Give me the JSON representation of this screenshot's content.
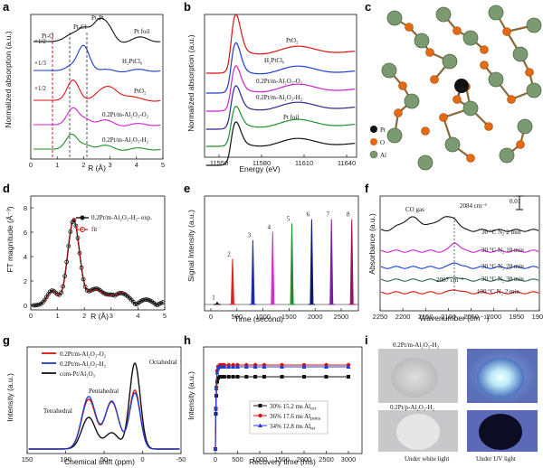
{
  "panels": {
    "a": {
      "label": "a",
      "ylabel": "Normalized absorption (a.u.)",
      "xlabel": "R (Å)",
      "xticks": [
        "0",
        "1",
        "2",
        "3",
        "4",
        "5"
      ],
      "peak_labels": [
        "Pt-O",
        "Pt-Cl",
        "Pt-Pt"
      ],
      "scale_labels": [
        "×1/2",
        "×1/3",
        "×1/2"
      ],
      "traces": [
        "Pt foil",
        "H₂PtCl₆",
        "PtO₂",
        "0.2Pt/m-Al₂O₃-O₂",
        "0.2Pt/m-Al₂O₃-H₂"
      ]
    },
    "b": {
      "label": "b",
      "ylabel": "Normalized absorption (a.u.)",
      "xlabel": "Energy (eV)",
      "xticks": [
        "11550",
        "11580",
        "11610",
        "11640"
      ],
      "traces": [
        "PtO₂",
        "H₂PtCl₆",
        "0.2Pt/m-Al₂O₃-O₂",
        "0.2Pt/m-Al₂O₃-H₂",
        "Pt foil"
      ]
    },
    "c": {
      "label": "c",
      "legend": [
        "Pt",
        "O",
        "Al"
      ]
    },
    "d": {
      "label": "d",
      "ylabel": "FT magnitude (Å⁻³)",
      "xlabel": "R (Å)",
      "xticks": [
        "0",
        "1",
        "2",
        "3",
        "4",
        "5"
      ],
      "yticks": [
        "0",
        "2",
        "4",
        "6",
        "8"
      ],
      "legend": [
        "0.2Pt/m-Al₂O₃-H₂- exp.",
        "fit"
      ]
    },
    "e": {
      "label": "e",
      "ylabel": "Signal Intensity (a.u.)",
      "xlabel": "Time (second)",
      "xticks": [
        "0",
        "500",
        "1000",
        "1500",
        "2000",
        "2500"
      ],
      "peak_numbers": [
        "1",
        "2",
        "3",
        "4",
        "5",
        "6",
        "7",
        "8"
      ]
    },
    "f": {
      "label": "f",
      "ylabel": "Absorbance (a.u.)",
      "xlabel": "Wavenumber (cm⁻¹)",
      "xticks": [
        "2250",
        "2200",
        "2150",
        "2100",
        "2050",
        "2000",
        "1950",
        "1900"
      ],
      "annotations": {
        "gas": "CO gas",
        "peak": "2084 cm⁻¹",
        "peak2": "2087 cm⁻¹",
        "scale": "0.01"
      },
      "traces": [
        "30 °C N₂ 2 min",
        "30 °C N₂ 10 min",
        "30 °C N₂ 20 min",
        "30 °C N₂ 30 min",
        "100 °C N₂ 2 min"
      ]
    },
    "g": {
      "label": "g",
      "ylabel": "Intensity (a.u.)",
      "xlabel": "Chemical shift (ppm)",
      "xticks": [
        "150",
        "100",
        "50",
        "0",
        "-50"
      ],
      "annotations": [
        "Octahedral",
        "Pentahedral",
        "Tetrahedral"
      ],
      "legend": [
        "0.2Pt/m-Al₂O₃-O₂",
        "0.2Pt/m-Al₂O₃-H₂",
        "com-Pt/Al₂O₃"
      ]
    },
    "h": {
      "label": "h",
      "ylabel": "Intensity (a.u.)",
      "xlabel": "Recovery time (ms)",
      "xticks": [
        "0",
        "500",
        "1000",
        "1500",
        "2000",
        "2500",
        "3000"
      ],
      "legend": [
        "30% 15.2 ms Al",
        "36% 17.6 ms Al",
        "34% 12.8 ms Al"
      ],
      "legend_subs": [
        "oct",
        "penta",
        "tet"
      ]
    },
    "i": {
      "label": "i",
      "photo_labels": [
        "0.2Pt/m-Al₂O₃-H₂",
        "0.2Pt/p-Al₂O₃-H₂"
      ],
      "captions": [
        "Under white light",
        "Under UV light"
      ]
    }
  },
  "chart_data": [
    {
      "type": "line",
      "panel": "e",
      "title": "",
      "xlabel": "Time (second)",
      "ylabel": "Signal Intensity (a.u.)",
      "xlim": [
        0,
        2800
      ],
      "peaks": [
        {
          "n": "1",
          "x": 230,
          "h": 0.02,
          "color": "#000000"
        },
        {
          "n": "2",
          "x": 510,
          "h": 0.44,
          "color": "#e02020"
        },
        {
          "n": "3",
          "x": 880,
          "h": 0.62,
          "color": "#1a2ea8"
        },
        {
          "n": "4",
          "x": 1240,
          "h": 0.7,
          "color": "#cc33cc"
        },
        {
          "n": "5",
          "x": 1590,
          "h": 0.78,
          "color": "#1f8f2a"
        },
        {
          "n": "6",
          "x": 1950,
          "h": 0.82,
          "color": "#0a1a6a"
        },
        {
          "n": "7",
          "x": 2310,
          "h": 0.82,
          "color": "#7b1fa2"
        },
        {
          "n": "8",
          "x": 2680,
          "h": 0.82,
          "color": "#a01060"
        }
      ]
    },
    {
      "type": "scatter",
      "panel": "h",
      "xlabel": "Recovery time (ms)",
      "ylabel": "Intensity (a.u.)",
      "xlim": [
        0,
        3100
      ],
      "series": [
        {
          "name": "30% 15.2 ms Al oct",
          "color": "#111111",
          "plateau": 0.8
        },
        {
          "name": "36% 17.6 ms Al penta",
          "color": "#d11",
          "plateau": 0.93
        },
        {
          "name": "34% 12.8 ms Al tet",
          "color": "#1a3ed1",
          "plateau": 0.91
        }
      ],
      "x": [
        0,
        10,
        20,
        40,
        60,
        100,
        150,
        200,
        300,
        400,
        500,
        700,
        900,
        1100,
        1500,
        2000,
        2500,
        3000
      ]
    }
  ]
}
